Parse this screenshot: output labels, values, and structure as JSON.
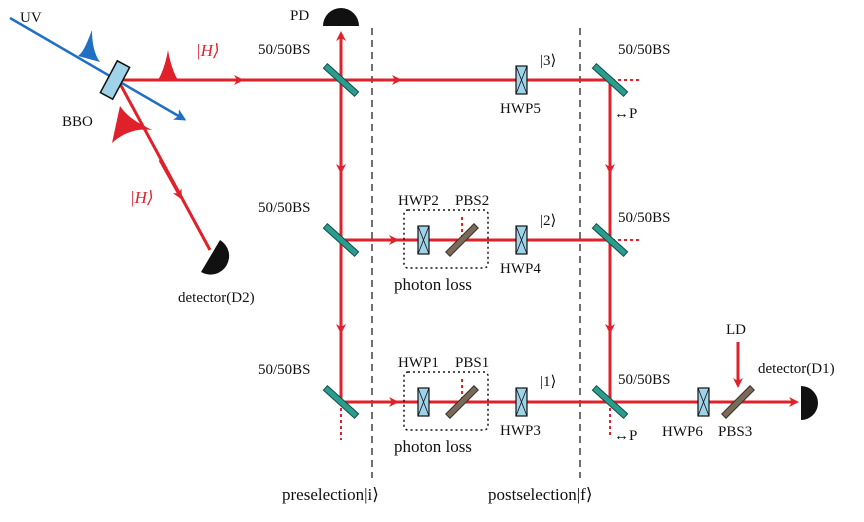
{
  "labels": {
    "uv": "UV",
    "bbo": "BBO",
    "pd": "PD",
    "h_state_top": "|H⟩",
    "h_state_side": "|H⟩",
    "detector_d2": "detector(D2)",
    "detector_d1": "detector(D1)",
    "bs_top_left": "50/50BS",
    "bs_mid_left": "50/50BS",
    "bs_bot_left": "50/50BS",
    "bs_top_right": "50/50BS",
    "bs_mid_right": "50/50BS",
    "bs_bot_right": "50/50BS",
    "ket3": "|3⟩",
    "ket2": "|2⟩",
    "ket1": "|1⟩",
    "hwp1": "HWP1",
    "hwp2": "HWP2",
    "hwp3": "HWP3",
    "hwp4": "HWP4",
    "hwp5": "HWP5",
    "hwp6": "HWP6",
    "pbs1": "PBS1",
    "pbs2": "PBS2",
    "pbs3": "PBS3",
    "photon_loss_top": "photon loss",
    "photon_loss_bot": "photon loss",
    "ld": "LD",
    "p_top": "↔P",
    "p_bot": "↔P",
    "preselection": "preselection|i⟩",
    "postselection": "postselection|f⟩"
  },
  "colors": {
    "beam": "#e0202a",
    "uv": "#1f6fc4",
    "splitter": "#2a9d8f",
    "waveplate": "#9fd3ea",
    "pbs": "#7a6a5a"
  }
}
